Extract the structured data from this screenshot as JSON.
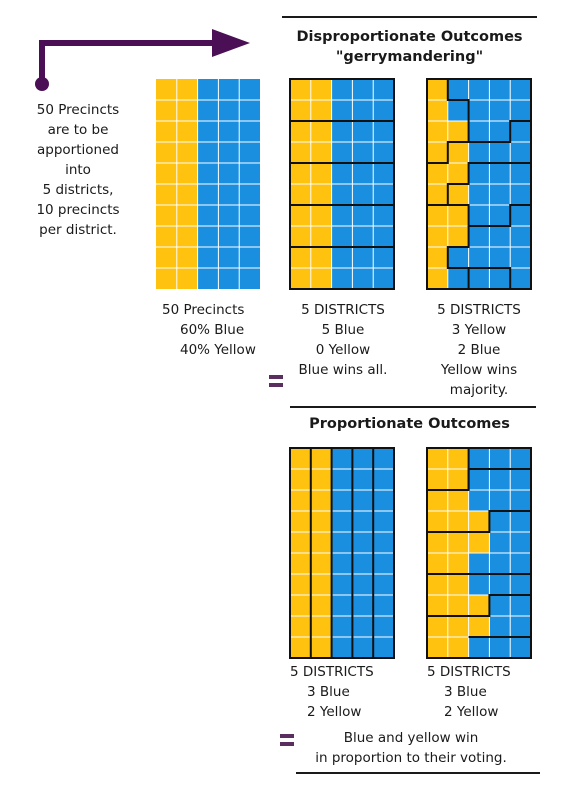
{
  "colors": {
    "yellow": "#ffc20e",
    "blue": "#1a8fe0",
    "purple": "#4b0f55",
    "equals": "#5a2e5e",
    "gridline": "#ffffff",
    "boundary": "#111111"
  },
  "intro": {
    "lines": [
      "50 Precincts",
      "are to be",
      "apportioned",
      "into",
      "5 districts,",
      "10 precincts",
      "per district."
    ]
  },
  "disproportionate": {
    "title_line1": "Disproportionate Outcomes",
    "title_line2": "\"gerrymandering\""
  },
  "proportionate": {
    "title": "Proportionate Outcomes"
  },
  "precincts_caption": [
    "50 Precincts",
    "60% Blue",
    "40% Yellow"
  ],
  "caption_blue_wins": [
    "5 DISTRICTS",
    "5 Blue",
    "0 Yellow",
    "Blue wins all."
  ],
  "caption_yellow_wins": [
    "5 DISTRICTS",
    "3 Yellow",
    "2 Blue",
    "Yellow wins",
    "majority."
  ],
  "caption_prop_columns": [
    "5 DISTRICTS",
    "3 Blue",
    "2 Yellow"
  ],
  "caption_prop_rows": [
    "5 DISTRICTS",
    "3 Blue",
    "2 Yellow"
  ],
  "conclusion": [
    "Blue and yellow win",
    "in proportion to their voting."
  ],
  "icons": {
    "arrow": "right-arrow-icon",
    "equals": "equals-icon"
  }
}
